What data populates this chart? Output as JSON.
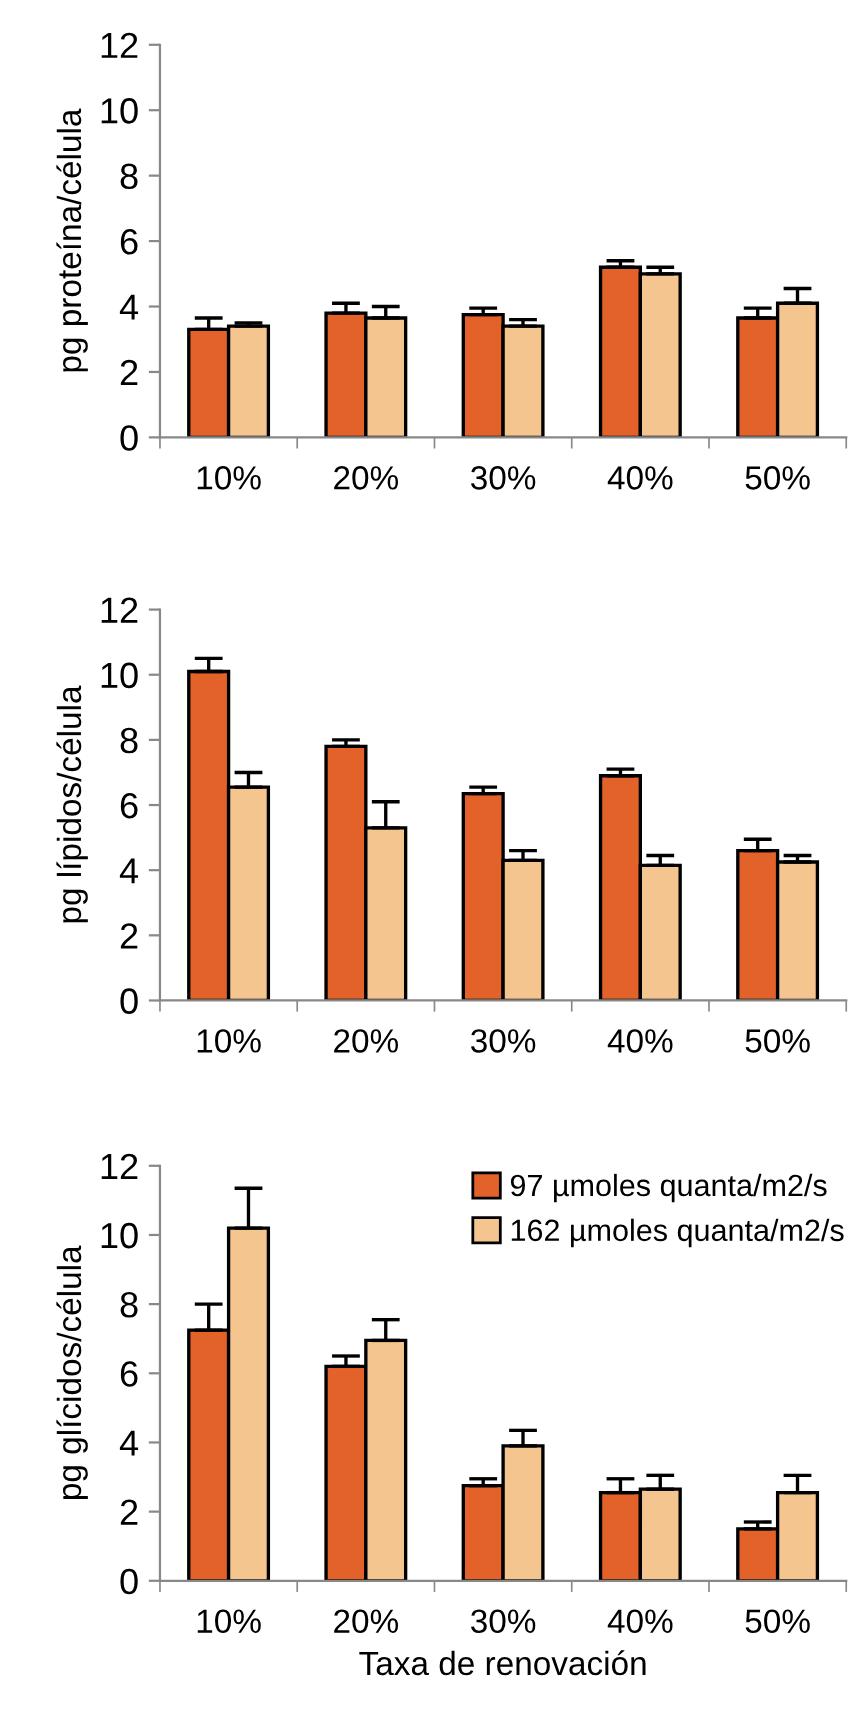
{
  "chart_data": [
    {
      "type": "bar",
      "ylabel": "pg proteína/célula",
      "categories": [
        "10%",
        "20%",
        "30%",
        "40%",
        "50%"
      ],
      "ylim": [
        0,
        12
      ],
      "yticks": [
        0,
        2,
        4,
        6,
        8,
        10,
        12
      ],
      "grid": false,
      "series": [
        {
          "color": "#e2622a",
          "values": [
            3.3,
            3.8,
            3.75,
            5.2,
            3.65
          ],
          "errors": [
            [
              3.3,
              3.65
            ],
            [
              3.8,
              4.1
            ],
            [
              3.75,
              3.95
            ],
            [
              5.2,
              5.4
            ],
            [
              3.65,
              3.95
            ]
          ]
        },
        {
          "color": "#f5c590",
          "values": [
            3.4,
            3.65,
            3.4,
            5.0,
            4.1
          ],
          "errors": [
            [
              3.4,
              3.5
            ],
            [
              3.65,
              4.0
            ],
            [
              3.4,
              3.6
            ],
            [
              5.0,
              5.2
            ],
            [
              4.1,
              4.55
            ]
          ]
        }
      ]
    },
    {
      "type": "bar",
      "ylabel": "pg lípidos/célula",
      "categories": [
        "10%",
        "20%",
        "30%",
        "40%",
        "50%"
      ],
      "ylim": [
        0,
        12
      ],
      "yticks": [
        0,
        2,
        4,
        6,
        8,
        10,
        12
      ],
      "grid": false,
      "series": [
        {
          "color": "#e2622a",
          "values": [
            10.1,
            7.8,
            6.35,
            6.9,
            4.6
          ],
          "errors": [
            [
              10.1,
              10.5
            ],
            [
              7.8,
              8.0
            ],
            [
              6.35,
              6.55
            ],
            [
              6.9,
              7.1
            ],
            [
              4.6,
              4.95
            ]
          ]
        },
        {
          "color": "#f5c590",
          "values": [
            6.55,
            5.3,
            4.3,
            4.15,
            4.25
          ],
          "errors": [
            [
              6.55,
              7.0
            ],
            [
              5.3,
              6.1
            ],
            [
              4.3,
              4.6
            ],
            [
              4.15,
              4.45
            ],
            [
              4.25,
              4.45
            ]
          ]
        }
      ]
    },
    {
      "type": "bar",
      "ylabel": "pg glícidos/célula",
      "xlabel": "Taxa de renovación",
      "categories": [
        "10%",
        "20%",
        "30%",
        "40%",
        "50%"
      ],
      "ylim": [
        0,
        12
      ],
      "yticks": [
        0,
        2,
        4,
        6,
        8,
        10,
        12
      ],
      "grid": false,
      "legend": "top right",
      "series": [
        {
          "name": "97 µmoles quanta/m2/s",
          "color": "#e2622a",
          "values": [
            7.25,
            6.2,
            2.75,
            2.55,
            1.5
          ],
          "errors": [
            [
              7.25,
              8.0
            ],
            [
              6.2,
              6.5
            ],
            [
              2.75,
              2.95
            ],
            [
              2.55,
              2.95
            ],
            [
              1.5,
              1.7
            ]
          ]
        },
        {
          "name": "162 µmoles quanta/m2/s",
          "color": "#f5c590",
          "values": [
            10.2,
            6.95,
            3.9,
            2.65,
            2.55
          ],
          "errors": [
            [
              10.2,
              11.35
            ],
            [
              6.95,
              7.55
            ],
            [
              3.9,
              4.35
            ],
            [
              2.65,
              3.05
            ],
            [
              2.55,
              3.05
            ]
          ]
        }
      ]
    }
  ]
}
